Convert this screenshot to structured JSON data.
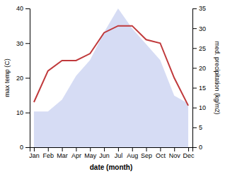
{
  "chart_data": {
    "type": "line",
    "categories": [
      "Jan",
      "Feb",
      "Mar",
      "Apr",
      "May",
      "Jun",
      "Jul",
      "Aug",
      "Sep",
      "Oct",
      "Nov",
      "Dec"
    ],
    "x_label": "date (month)",
    "y_label": "max temp (C)",
    "y2_label": "med. precipitation (kg/m2)",
    "series": [
      {
        "type": "area",
        "color": "#c5cdf0",
        "axis": "y2",
        "values": [
          9,
          9,
          12,
          18,
          22,
          29,
          35,
          30,
          26,
          22,
          13,
          11
        ]
      },
      {
        "type": "line",
        "color": "#c0393b",
        "values": [
          13,
          22,
          25,
          25,
          27,
          33,
          35,
          35,
          31,
          30,
          20,
          12
        ]
      }
    ],
    "ylim": [
      0,
      40
    ],
    "yticks": [
      0,
      10,
      20,
      30,
      40
    ],
    "y2lim": [
      0,
      35
    ],
    "y2ticks": [
      0,
      5,
      10,
      15,
      20,
      25,
      30,
      35
    ],
    "grid": false
  }
}
